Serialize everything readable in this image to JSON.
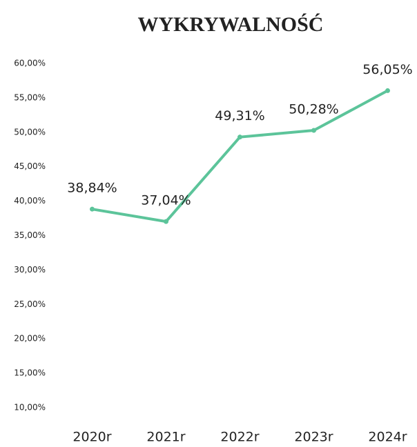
{
  "chart_data": {
    "type": "line",
    "title": "WYKRYWALNOŚĆ",
    "categories": [
      "2020r",
      "2021r",
      "2022r",
      "2023r",
      "2024r"
    ],
    "series": [
      {
        "name": "Wykrywalność",
        "color": "#5cc49a",
        "values": [
          38.84,
          37.04,
          49.31,
          50.28,
          56.05
        ],
        "value_labels": [
          "38,84%",
          "37,04%",
          "49,31%",
          "50,28%",
          "56,05%"
        ]
      }
    ],
    "ylim": [
      10,
      60
    ],
    "yticks": [
      {
        "value": 10,
        "label": "10,00%"
      },
      {
        "value": 15,
        "label": "15,00%"
      },
      {
        "value": 20,
        "label": "20,00%"
      },
      {
        "value": 25,
        "label": "25,00%"
      },
      {
        "value": 30,
        "label": "30,00%"
      },
      {
        "value": 35,
        "label": "35,00%"
      },
      {
        "value": 40,
        "label": "40,00%"
      },
      {
        "value": 45,
        "label": "45,00%"
      },
      {
        "value": 50,
        "label": "50,00%"
      },
      {
        "value": 55,
        "label": "55,00%"
      },
      {
        "value": 60,
        "label": "60,00%"
      }
    ],
    "grid": false
  }
}
